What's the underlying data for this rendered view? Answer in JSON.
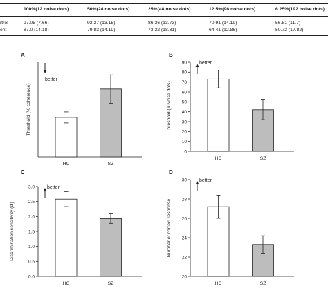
{
  "table": {
    "headers": [
      "100%(12 noise dots)",
      "50%(24 noise dots)",
      "25%(48 noise dots)",
      "12.5%(96 noise dots)",
      "6.25%(192 noise dots)"
    ],
    "rows": [
      {
        "label": "rtrol",
        "values": [
          "97.05 (7.66)",
          "92.27 (13.15)",
          "86.36 (13.73)",
          "70.91 (14.19)",
          "56.81 (11.7)"
        ]
      },
      {
        "label": "ent",
        "values": [
          "87.0 (14.18)",
          "79.83 (14.19)",
          "73.32 (18.31)",
          "64.41 (12.86)",
          "50.72 (17.82)"
        ]
      }
    ]
  },
  "colors": {
    "hc_bar": "#ffffff",
    "sz_bar": "#bdbdbd",
    "axis": "#222222"
  },
  "chart_data": [
    {
      "panel": "A",
      "type": "bar",
      "categories": [
        "HC",
        "SZ"
      ],
      "values": [
        25,
        43
      ],
      "errors": [
        3.5,
        9
      ],
      "ylabel": "Threshold (% coherence)",
      "annotation": "better",
      "arrow": "down",
      "ylim": [
        0,
        60
      ],
      "show_ticks": false
    },
    {
      "panel": "B",
      "type": "bar",
      "categories": [
        "HC",
        "SZ"
      ],
      "values": [
        73,
        42
      ],
      "errors": [
        9,
        10
      ],
      "ylabel": "Threshold (# Noise dots)",
      "annotation": "better",
      "arrow": "up",
      "ylim": [
        0,
        90
      ],
      "ticks": [
        0,
        10,
        20,
        30,
        40,
        50,
        60,
        70,
        80,
        90
      ]
    },
    {
      "panel": "C",
      "type": "bar",
      "categories": [
        "HC",
        "SZ"
      ],
      "values": [
        2.58,
        1.93
      ],
      "errors": [
        0.25,
        0.16
      ],
      "ylabel": "Discrimination sensitivity (d')",
      "annotation": "better",
      "arrow": "up",
      "ylim": [
        0,
        3.0
      ],
      "ticks": [
        0,
        0.5,
        1.0,
        1.5,
        2.0,
        2.5,
        3.0
      ]
    },
    {
      "panel": "D",
      "type": "bar",
      "categories": [
        "HC",
        "SZ"
      ],
      "values": [
        27.2,
        23.3
      ],
      "errors": [
        1.2,
        0.9
      ],
      "ylabel": "Number of correct response",
      "annotation": "better",
      "arrow": "up",
      "ylim": [
        20,
        30
      ],
      "ticks": [
        20,
        22,
        24,
        26,
        28,
        30
      ]
    }
  ]
}
